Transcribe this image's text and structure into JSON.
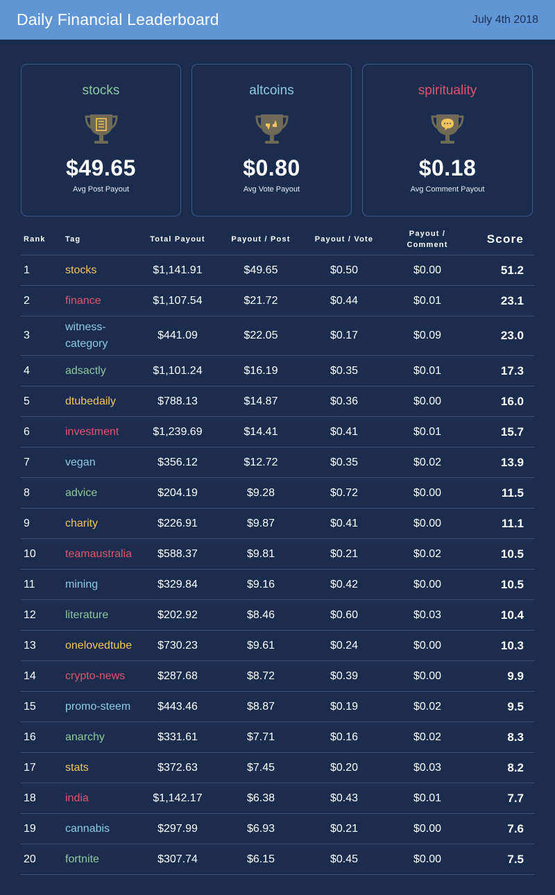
{
  "header": {
    "title": "Daily Financial Leaderboard",
    "date": "July 4th 2018"
  },
  "colors": {
    "green": "#8dc99d",
    "blue": "#8ccbe0",
    "red": "#e0546b",
    "gold": "#f4c55c",
    "header_bg": "#6096d6",
    "page_bg": "#1b2c4f",
    "trophy": "#6e6a55"
  },
  "cards": [
    {
      "category": "stocks",
      "color": "#8dc99d",
      "icon": "trophy-document-icon",
      "amount": "$49.65",
      "caption": "Avg Post Payout"
    },
    {
      "category": "altcoins",
      "color": "#8ccbe0",
      "icon": "trophy-thumbs-icon",
      "amount": "$0.80",
      "caption": "Avg Vote Payout"
    },
    {
      "category": "spirituality",
      "color": "#e0546b",
      "icon": "trophy-comment-icon",
      "amount": "$0.18",
      "caption": "Avg Comment Payout"
    }
  ],
  "table": {
    "headers": {
      "rank": "Rank",
      "tag": "Tag",
      "total": "Total Payout",
      "post": "Payout / Post",
      "vote": "Payout / Vote",
      "comment_1": "Payout /",
      "comment_2": "Comment",
      "score": "Score"
    },
    "rows": [
      {
        "rank": "1",
        "tag": "stocks",
        "color": "#f4c55c",
        "total": "$1,141.91",
        "post": "$49.65",
        "vote": "$0.50",
        "comment": "$0.00",
        "score": "51.2"
      },
      {
        "rank": "2",
        "tag": "finance",
        "color": "#e0546b",
        "total": "$1,107.54",
        "post": "$21.72",
        "vote": "$0.44",
        "comment": "$0.01",
        "score": "23.1"
      },
      {
        "rank": "3",
        "tag": "witness-category",
        "color": "#8ccbe0",
        "total": "$441.09",
        "post": "$22.05",
        "vote": "$0.17",
        "comment": "$0.09",
        "score": "23.0"
      },
      {
        "rank": "4",
        "tag": "adsactly",
        "color": "#8dc99d",
        "total": "$1,101.24",
        "post": "$16.19",
        "vote": "$0.35",
        "comment": "$0.01",
        "score": "17.3"
      },
      {
        "rank": "5",
        "tag": "dtubedaily",
        "color": "#f4c55c",
        "total": "$788.13",
        "post": "$14.87",
        "vote": "$0.36",
        "comment": "$0.00",
        "score": "16.0"
      },
      {
        "rank": "6",
        "tag": "investment",
        "color": "#e0546b",
        "total": "$1,239.69",
        "post": "$14.41",
        "vote": "$0.41",
        "comment": "$0.01",
        "score": "15.7"
      },
      {
        "rank": "7",
        "tag": "vegan",
        "color": "#8ccbe0",
        "total": "$356.12",
        "post": "$12.72",
        "vote": "$0.35",
        "comment": "$0.02",
        "score": "13.9"
      },
      {
        "rank": "8",
        "tag": "advice",
        "color": "#8dc99d",
        "total": "$204.19",
        "post": "$9.28",
        "vote": "$0.72",
        "comment": "$0.00",
        "score": "11.5"
      },
      {
        "rank": "9",
        "tag": "charity",
        "color": "#f4c55c",
        "total": "$226.91",
        "post": "$9.87",
        "vote": "$0.41",
        "comment": "$0.00",
        "score": "11.1"
      },
      {
        "rank": "10",
        "tag": "teamaustralia",
        "color": "#e0546b",
        "total": "$588.37",
        "post": "$9.81",
        "vote": "$0.21",
        "comment": "$0.02",
        "score": "10.5"
      },
      {
        "rank": "11",
        "tag": "mining",
        "color": "#8ccbe0",
        "total": "$329.84",
        "post": "$9.16",
        "vote": "$0.42",
        "comment": "$0.00",
        "score": "10.5"
      },
      {
        "rank": "12",
        "tag": "literature",
        "color": "#8dc99d",
        "total": "$202.92",
        "post": "$8.46",
        "vote": "$0.60",
        "comment": "$0.03",
        "score": "10.4"
      },
      {
        "rank": "13",
        "tag": "onelovedtube",
        "color": "#f4c55c",
        "total": "$730.23",
        "post": "$9.61",
        "vote": "$0.24",
        "comment": "$0.00",
        "score": "10.3"
      },
      {
        "rank": "14",
        "tag": "crypto-news",
        "color": "#e0546b",
        "total": "$287.68",
        "post": "$8.72",
        "vote": "$0.39",
        "comment": "$0.00",
        "score": "9.9"
      },
      {
        "rank": "15",
        "tag": "promo-steem",
        "color": "#8ccbe0",
        "total": "$443.46",
        "post": "$8.87",
        "vote": "$0.19",
        "comment": "$0.02",
        "score": "9.5"
      },
      {
        "rank": "16",
        "tag": "anarchy",
        "color": "#8dc99d",
        "total": "$331.61",
        "post": "$7.71",
        "vote": "$0.16",
        "comment": "$0.02",
        "score": "8.3"
      },
      {
        "rank": "17",
        "tag": "stats",
        "color": "#f4c55c",
        "total": "$372.63",
        "post": "$7.45",
        "vote": "$0.20",
        "comment": "$0.03",
        "score": "8.2"
      },
      {
        "rank": "18",
        "tag": "india",
        "color": "#e0546b",
        "total": "$1,142.17",
        "post": "$6.38",
        "vote": "$0.43",
        "comment": "$0.01",
        "score": "7.7"
      },
      {
        "rank": "19",
        "tag": "cannabis",
        "color": "#8ccbe0",
        "total": "$297.99",
        "post": "$6.93",
        "vote": "$0.21",
        "comment": "$0.00",
        "score": "7.6"
      },
      {
        "rank": "20",
        "tag": "fortnite",
        "color": "#8dc99d",
        "total": "$307.74",
        "post": "$6.15",
        "vote": "$0.45",
        "comment": "$0.00",
        "score": "7.5"
      }
    ]
  }
}
